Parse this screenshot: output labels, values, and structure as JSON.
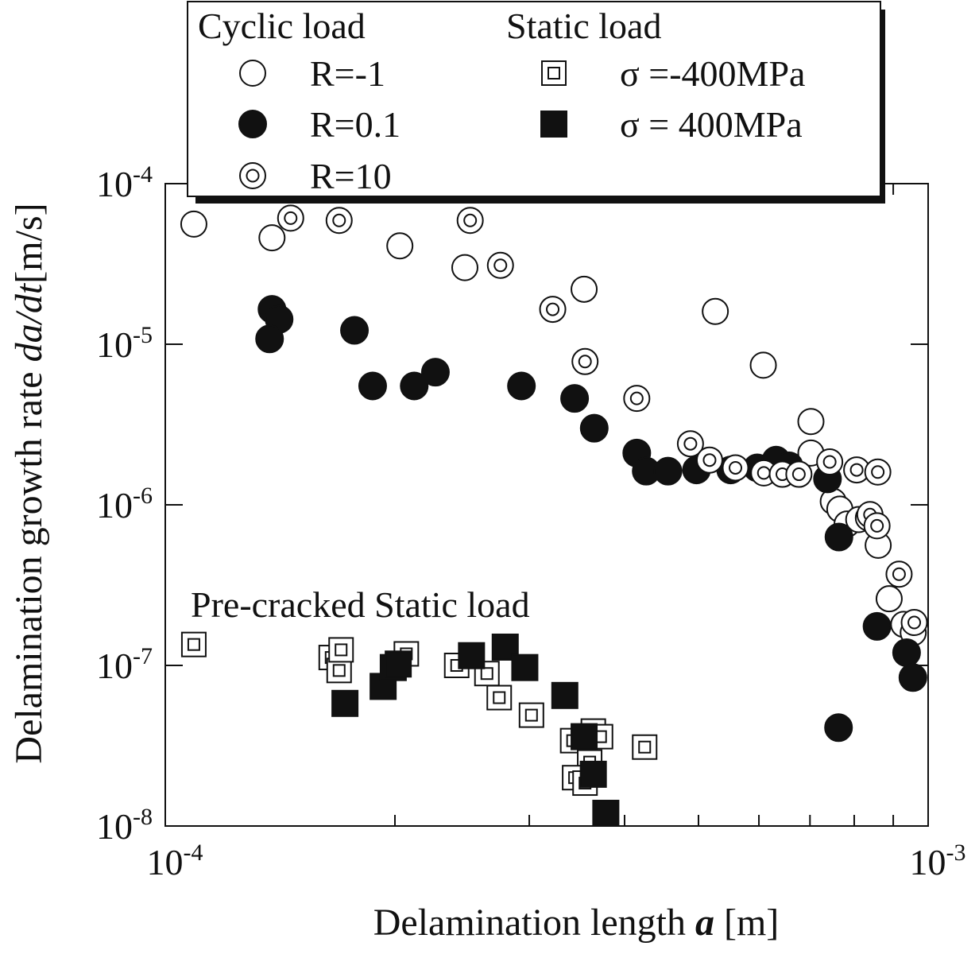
{
  "chart_data": {
    "type": "scatter",
    "xscale": "log",
    "yscale": "log",
    "xlim": [
      0.0001,
      0.001
    ],
    "ylim": [
      1e-08,
      0.0001
    ],
    "grid": false,
    "xlabel": {
      "prefix": "Delamination length ",
      "var": "a",
      "unit": " [m]"
    },
    "ylabel": {
      "prefix": "Delamination growth rate ",
      "var": "da/dt",
      "unit": "[m/s]"
    },
    "x_ticks": [
      {
        "value": 0.0001,
        "base": "10",
        "exp": "-4"
      },
      {
        "value": 0.001,
        "base": "10",
        "exp": "-3"
      }
    ],
    "y_ticks": [
      {
        "value": 0.0001,
        "base": "10",
        "exp": "-4"
      },
      {
        "value": 1e-05,
        "base": "10",
        "exp": "-5"
      },
      {
        "value": 1e-06,
        "base": "10",
        "exp": "-6"
      },
      {
        "value": 1e-07,
        "base": "10",
        "exp": "-7"
      },
      {
        "value": 1e-08,
        "base": "10",
        "exp": "-8"
      }
    ],
    "annotation": "Pre-cracked Static load",
    "legend": {
      "position": "top",
      "header_cyclic": "Cyclic load",
      "header_static": "Static load",
      "entries": [
        {
          "series": "R=-1",
          "label": "R=-1",
          "marker": "open-circle"
        },
        {
          "series": "R=0.1",
          "label": "R=0.1",
          "marker": "filled-circle"
        },
        {
          "series": "R=10",
          "label": "R=10",
          "marker": "double-circle"
        },
        {
          "series": "sigma=-400MPa",
          "label": "σ =-400MPa",
          "marker": "double-square"
        },
        {
          "series": "sigma=400MPa",
          "label": "σ = 400MPa",
          "marker": "filled-square"
        }
      ]
    },
    "series": [
      {
        "name": "R=-1",
        "group": "Cyclic load",
        "marker": "open-circle",
        "points": [
          [
            0.000109,
            5.6e-05
          ],
          [
            0.000138,
            4.6e-05
          ],
          [
            0.000203,
            4.1e-05
          ],
          [
            0.000247,
            3e-05
          ],
          [
            0.000354,
            2.2e-05
          ],
          [
            0.000526,
            1.6e-05
          ],
          [
            0.000608,
            7.4e-06
          ],
          [
            0.000702,
            3.3e-06
          ],
          [
            0.000702,
            2.1e-06
          ],
          [
            0.000751,
            1.05e-06
          ],
          [
            0.000766,
            9.4e-07
          ],
          [
            0.000783,
            7.6e-07
          ],
          [
            0.000811,
            8.1e-07
          ],
          [
            0.000835,
            8.3e-07
          ],
          [
            0.00086,
            5.6e-07
          ],
          [
            0.000889,
            2.6e-07
          ],
          [
            0.000929,
            1.8e-07
          ],
          [
            0.000956,
            1.6e-07
          ]
        ]
      },
      {
        "name": "R=0.1",
        "group": "Cyclic load",
        "marker": "filled-circle",
        "points": [
          [
            0.000138,
            1.65e-05
          ],
          [
            0.000141,
            1.43e-05
          ],
          [
            0.000137,
            1.08e-05
          ],
          [
            0.000177,
            1.22e-05
          ],
          [
            0.000187,
            5.5e-06
          ],
          [
            0.000212,
            5.5e-06
          ],
          [
            0.000226,
            6.7e-06
          ],
          [
            0.000293,
            5.5e-06
          ],
          [
            0.000344,
            4.6e-06
          ],
          [
            0.000365,
            3e-06
          ],
          [
            0.000415,
            2.1e-06
          ],
          [
            0.000427,
            1.62e-06
          ],
          [
            0.000456,
            1.62e-06
          ],
          [
            0.000497,
            1.65e-06
          ],
          [
            0.000551,
            1.65e-06
          ],
          [
            0.000597,
            1.7e-06
          ],
          [
            0.000632,
            1.9e-06
          ],
          [
            0.000657,
            1.75e-06
          ],
          [
            0.000738,
            1.45e-06
          ],
          [
            0.000764,
            6.3e-07
          ],
          [
            0.000857,
            1.75e-07
          ],
          [
            0.000763,
            4.1e-08
          ],
          [
            0.000937,
            1.2e-07
          ],
          [
            0.000955,
            8.4e-08
          ]
        ]
      },
      {
        "name": "R=10",
        "group": "Cyclic load",
        "marker": "double-circle",
        "points": [
          [
            0.000146,
            6.1e-05
          ],
          [
            0.000169,
            5.9e-05
          ],
          [
            0.000251,
            5.9e-05
          ],
          [
            0.000275,
            3.1e-05
          ],
          [
            0.000322,
            1.65e-05
          ],
          [
            0.000355,
            7.8e-06
          ],
          [
            0.000415,
            4.6e-06
          ],
          [
            0.000488,
            2.4e-06
          ],
          [
            0.000517,
            1.9e-06
          ],
          [
            0.000559,
            1.7e-06
          ],
          [
            0.000609,
            1.58e-06
          ],
          [
            0.000644,
            1.55e-06
          ],
          [
            0.000677,
            1.55e-06
          ],
          [
            0.000743,
            1.85e-06
          ],
          [
            0.000806,
            1.65e-06
          ],
          [
            0.000859,
            1.6e-06
          ],
          [
            0.000839,
            8.7e-07
          ],
          [
            0.000857,
            7.4e-07
          ],
          [
            0.000916,
            3.7e-07
          ],
          [
            0.000959,
            1.85e-07
          ]
        ]
      },
      {
        "name": "sigma=-400MPa",
        "group": "Pre-cracked Static load",
        "marker": "double-square",
        "points": [
          [
            0.000109,
            1.35e-07
          ],
          [
            0.000165,
            1.12e-07
          ],
          [
            0.000169,
            9.3e-08
          ],
          [
            0.00017,
            1.25e-07
          ],
          [
            0.000207,
            1.18e-07
          ],
          [
            0.000241,
            1e-07
          ],
          [
            0.000264,
            8.9e-08
          ],
          [
            0.000274,
            6.3e-08
          ],
          [
            0.000302,
            4.9e-08
          ],
          [
            0.000342,
            3.4e-08
          ],
          [
            0.000364,
            3.9e-08
          ],
          [
            0.000372,
            3.6e-08
          ],
          [
            0.000425,
            3.1e-08
          ],
          [
            0.00036,
            2.5e-08
          ],
          [
            0.000344,
            2e-08
          ],
          [
            0.000355,
            1.85e-08
          ]
        ]
      },
      {
        "name": "sigma=400MPa",
        "group": "Pre-cracked Static load",
        "marker": "filled-square",
        "points": [
          [
            0.000172,
            5.8e-08
          ],
          [
            0.000193,
            7.4e-08
          ],
          [
            0.000199,
            9.7e-08
          ],
          [
            0.000202,
            1.02e-07
          ],
          [
            0.000252,
            1.15e-07
          ],
          [
            0.000279,
            1.3e-07
          ],
          [
            0.000296,
            9.7e-08
          ],
          [
            0.000334,
            6.5e-08
          ],
          [
            0.000354,
            3.6e-08
          ],
          [
            0.000364,
            2.1e-08
          ],
          [
            0.000378,
            1.2e-08
          ]
        ]
      }
    ]
  }
}
